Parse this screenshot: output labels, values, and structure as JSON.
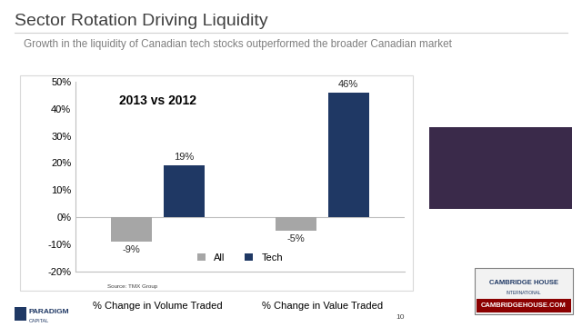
{
  "chart_data": {
    "type": "bar",
    "title": "Sector Rotation Driving Liquidity",
    "subtitle": "Growth in the liquidity of Canadian tech stocks outperformed the broader Canadian market",
    "annotations": [
      "2013 vs 2012",
      "Source: TMX Group",
      "10",
      "PARADIGM",
      "CAPITAL",
      "CAMBRIDGE HOUSE",
      "INTERNATIONAL",
      "CAMBRIDGEHOUSE.COM"
    ],
    "categories": [
      "% Change in Volume Traded",
      "% Change in Value Traded"
    ],
    "series": [
      {
        "name": "All",
        "color": "#a6a6a6",
        "values": [
          -9,
          -5
        ],
        "value_labels": [
          "-9%",
          "-5%"
        ]
      },
      {
        "name": "Tech",
        "color": "#1f3864",
        "values": [
          19,
          46
        ],
        "value_labels": [
          "19%",
          "46%"
        ]
      }
    ],
    "ylim": [
      -20,
      50
    ],
    "yticks": [
      {
        "value": -20,
        "label": "-20%"
      },
      {
        "value": -10,
        "label": "-10%"
      },
      {
        "value": 0,
        "label": "0%"
      },
      {
        "value": 10,
        "label": "10%"
      },
      {
        "value": 20,
        "label": "20%"
      },
      {
        "value": 30,
        "label": "30%"
      },
      {
        "value": 40,
        "label": "40%"
      },
      {
        "value": 50,
        "label": "50%"
      }
    ],
    "data_labels": true,
    "legend": "lower center",
    "grid": false
  }
}
